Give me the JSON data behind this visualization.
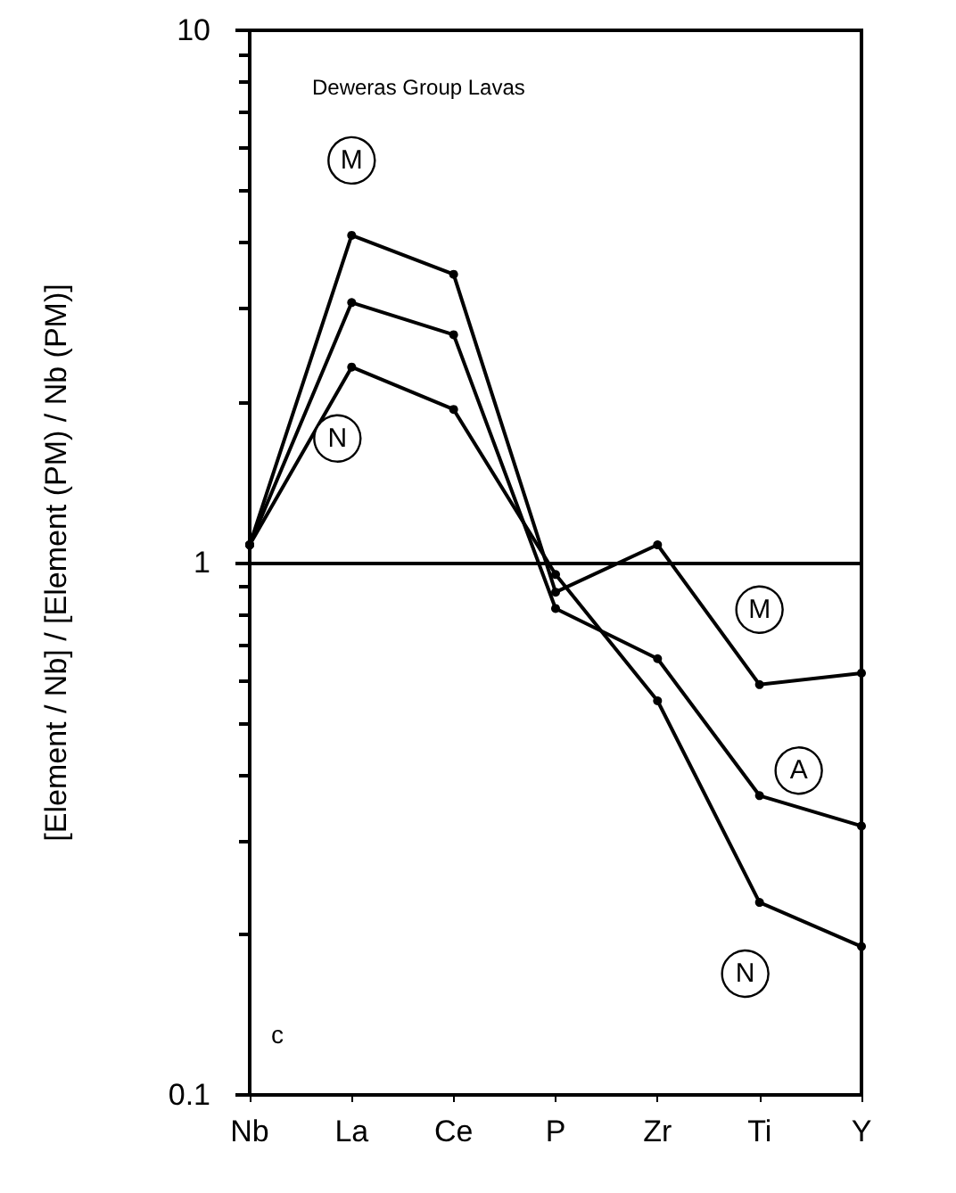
{
  "chart_data": {
    "type": "line",
    "title": "Deweras Group Lavas",
    "ylabel": "[Element / Nb] / [Element (PM) / Nb (PM)]",
    "categories": [
      "Nb",
      "La",
      "Ce",
      "P",
      "Zr",
      "Ti",
      "Y"
    ],
    "series": [
      {
        "color": "#000000",
        "values": [
          1.08,
          4.12,
          3.48,
          0.88,
          1.08,
          0.59,
          0.62
        ]
      },
      {
        "color": "#000000",
        "values": [
          1.08,
          3.08,
          2.68,
          0.82,
          0.66,
          0.365,
          0.32
        ]
      },
      {
        "color": "#000000",
        "values": [
          1.08,
          2.33,
          1.94,
          0.95,
          0.55,
          0.23,
          0.19
        ]
      }
    ],
    "ylim": [
      0.1,
      10
    ],
    "yticks": [
      0.1,
      1,
      10
    ],
    "log": true,
    "grid": false,
    "marker": "circle",
    "line_style": "solid",
    "ref_lines": [
      {
        "axis": "y",
        "value": 1,
        "color": "#000000"
      }
    ],
    "annotations": [
      {
        "text": "M",
        "x": "La",
        "y": 4.12
      },
      {
        "text": "N",
        "x": "La",
        "y": 2.33
      },
      {
        "text": "M",
        "x": "Ti",
        "y": 0.59
      },
      {
        "text": "A",
        "x": "Ti",
        "y": 0.365
      },
      {
        "text": "N",
        "x": "Ti",
        "y": 0.23
      },
      "c"
    ]
  }
}
